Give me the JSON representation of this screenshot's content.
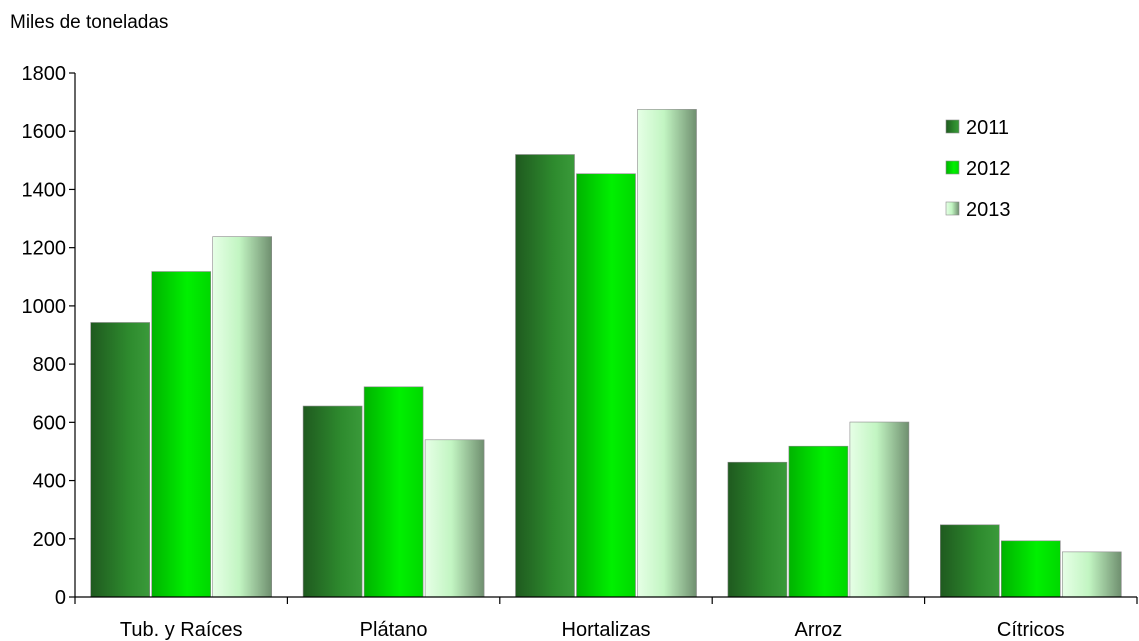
{
  "chart_data": {
    "type": "bar",
    "title": "",
    "ylabel": "Miles de toneladas",
    "xlabel": "",
    "ylim": [
      0,
      1800
    ],
    "yticks": [
      0,
      200,
      400,
      600,
      800,
      1000,
      1200,
      1400,
      1600,
      1800
    ],
    "grid": false,
    "legend_position": "top-right",
    "categories": [
      "Tub. y Raíces",
      "Plátano",
      "Hortalizas",
      "Arroz",
      "Cítricos"
    ],
    "series": [
      {
        "name": "2011",
        "color": "#2e8b2e",
        "values": [
          943,
          656,
          1520,
          463,
          248
        ]
      },
      {
        "name": "2012",
        "color": "#00e600",
        "values": [
          1118,
          722,
          1454,
          518,
          193
        ]
      },
      {
        "name": "2013",
        "color": "#b8f5b8",
        "values": [
          1238,
          540,
          1675,
          601,
          155
        ]
      }
    ]
  }
}
